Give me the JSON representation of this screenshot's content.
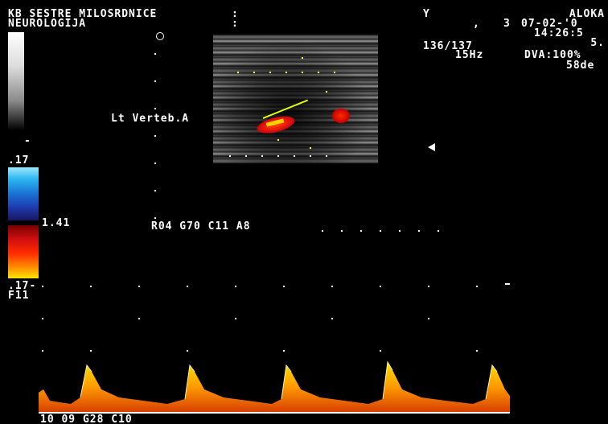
{
  "header": {
    "institution": "KB SESTRE MILOSRDNICE",
    "department": "NEUROLOGIJA",
    "separator_top": ":",
    "separator_bottom": ":",
    "y_mark": "Y",
    "comma": ",",
    "number": "3",
    "manufacturer": "ALOKA",
    "date": "07-02-'0",
    "time": "14:26:5",
    "depth_value": "5.",
    "frame_rate": "136/137",
    "prf": "15Hz",
    "dva": "DVA:100%",
    "angle": "58de"
  },
  "colorbar": {
    "scale_top": ".17",
    "velocity": "1.41",
    "scale_bottom": ".17-",
    "filter": "F11",
    "dash": "-",
    "colors": {
      "blue_top": "#9fe8ff",
      "blue_bottom": "#1a1560",
      "red_top": "#7a0000",
      "red_bottom": "#ffe400"
    }
  },
  "image": {
    "vessel_label": "Lt Verteb.A",
    "settings": "R04 G70 C11 A8",
    "colors": {
      "flow_red": "#e30e0e",
      "doppler_orange": "#ff9a00",
      "doppler_yellow": "#ffe000",
      "cursor": "#e4ff00"
    }
  },
  "doppler": {
    "bottom_settings": "10 09 G28 C10",
    "waveform_type": "spectral doppler, systolic peaks",
    "peak_count": 5
  }
}
